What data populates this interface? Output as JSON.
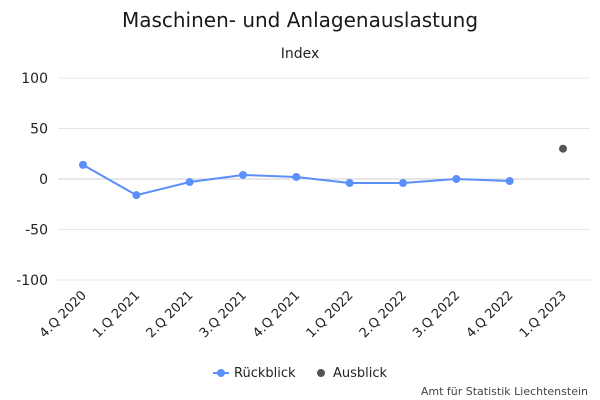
{
  "chart_data": {
    "type": "line",
    "title": "Maschinen- und Anlagenauslastung",
    "subtitle": "Index",
    "categories": [
      "4.Q 2020",
      "1.Q 2021",
      "2.Q 2021",
      "3.Q 2021",
      "4.Q 2021",
      "1.Q 2022",
      "2.Q 2022",
      "3.Q 2022",
      "4.Q 2022",
      "1.Q 2023"
    ],
    "series": [
      {
        "name": "Rückblick",
        "color": "#5b8ff9",
        "values": [
          14,
          -16,
          -3,
          4,
          2,
          -4,
          -4,
          0,
          -2,
          null
        ]
      },
      {
        "name": "Ausblick",
        "color": "#555555",
        "values": [
          null,
          null,
          null,
          null,
          null,
          null,
          null,
          null,
          null,
          30
        ]
      }
    ],
    "ylim": [
      -100,
      100
    ],
    "yticks": [
      100,
      50,
      0,
      -50,
      -100
    ],
    "ytick_labels": [
      "100",
      "50",
      "0",
      "-50",
      "-100"
    ],
    "grid": true,
    "legend_position": "bottom-center",
    "credit": "Amt für Statistik Liechtenstein"
  }
}
